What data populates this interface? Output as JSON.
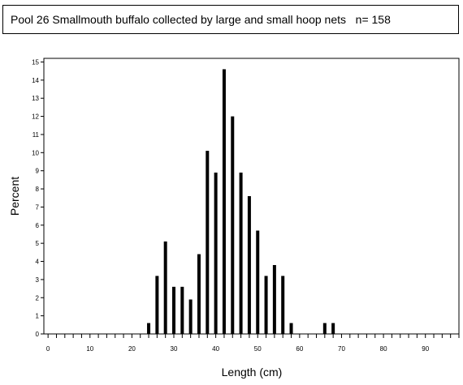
{
  "title": "Pool 26 Smallmouth buffalo collected by large and small hoop nets   n= 158",
  "chart_data": {
    "type": "bar",
    "xlabel": "Length (cm)",
    "ylabel": "Percent",
    "xlim": [
      -1,
      98
    ],
    "ylim": [
      0,
      15.2
    ],
    "x_ticks": [
      0,
      10,
      20,
      30,
      40,
      50,
      60,
      70,
      80,
      90
    ],
    "y_ticks": [
      0,
      1,
      2,
      3,
      4,
      5,
      6,
      7,
      8,
      9,
      10,
      11,
      12,
      13,
      14,
      15
    ],
    "x_minor_step": 2,
    "grid": false,
    "legend": "none",
    "bar_color": "#000000",
    "x": [
      24,
      26,
      28,
      30,
      32,
      34,
      36,
      38,
      40,
      42,
      44,
      46,
      48,
      50,
      52,
      54,
      56,
      58,
      66,
      68
    ],
    "values": [
      0.6,
      3.2,
      5.1,
      2.6,
      2.6,
      1.9,
      4.4,
      10.1,
      8.9,
      14.6,
      12.0,
      8.9,
      7.6,
      5.7,
      3.2,
      3.8,
      3.2,
      0.6,
      0.6,
      0.6
    ]
  }
}
